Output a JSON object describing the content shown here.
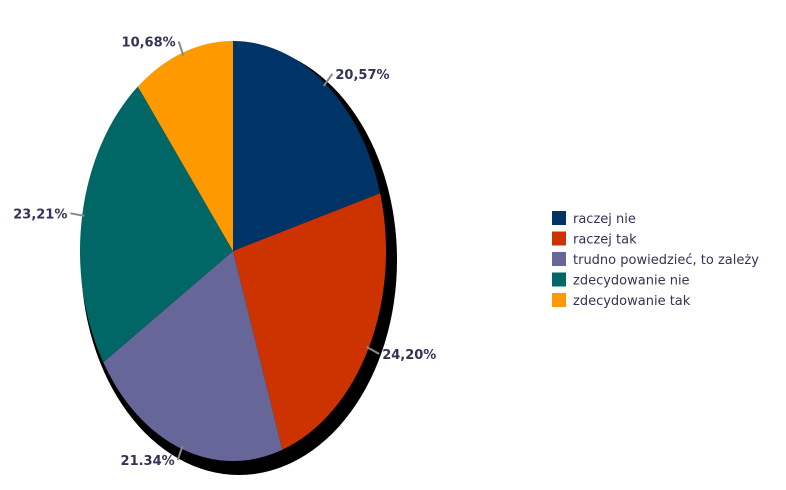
{
  "chart_data": {
    "type": "pie",
    "title": "",
    "slices": [
      {
        "label": "raczej nie",
        "value": 20.57,
        "value_label": "20,57%",
        "color": "#003366"
      },
      {
        "label": "raczej tak",
        "value": 24.2,
        "value_label": "24,20%",
        "color": "#cc3300"
      },
      {
        "label": "trudno powiedzieć, to zależy",
        "value": 21.34,
        "value_label": "21.34%",
        "color": "#666699"
      },
      {
        "label": "zdecydowanie nie",
        "value": 23.21,
        "value_label": "23,21%",
        "color": "#006666"
      },
      {
        "label": "zdecydowanie tak",
        "value": 10.68,
        "value_label": "10,68%",
        "color": "#ff9900"
      }
    ],
    "start_angle": "12 o'clock",
    "direction": "clockwise",
    "legend_position": "right",
    "label_color": "#333355"
  }
}
